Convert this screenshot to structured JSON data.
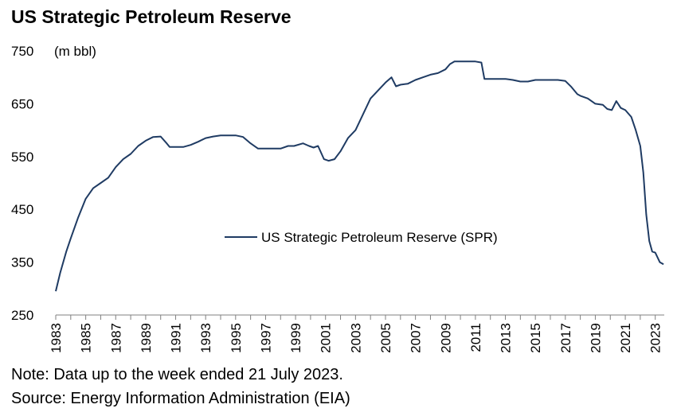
{
  "chart_data": {
    "type": "line",
    "title": "US Strategic Petroleum Reserve",
    "unit_label": "(m bbl)",
    "legend_label": "US Strategic Petroleum Reserve (SPR)",
    "legend_position": "center-right",
    "grid": false,
    "ylim": [
      250,
      750
    ],
    "yticks": [
      250,
      350,
      450,
      550,
      650,
      750
    ],
    "xlim": [
      1983,
      2023.6
    ],
    "xticks": [
      1983,
      1985,
      1987,
      1989,
      1991,
      1993,
      1995,
      1997,
      1999,
      2001,
      2003,
      2005,
      2007,
      2009,
      2011,
      2013,
      2015,
      2017,
      2019,
      2021,
      2023
    ],
    "line_color": "#1f3b63",
    "series": [
      {
        "name": "US Strategic Petroleum Reserve (SPR)",
        "x": [
          1983.0,
          1983.3,
          1983.7,
          1984.0,
          1984.5,
          1985.0,
          1985.5,
          1986.0,
          1986.5,
          1987.0,
          1987.5,
          1988.0,
          1988.5,
          1989.0,
          1989.5,
          1990.0,
          1990.4,
          1990.6,
          1991.0,
          1991.5,
          1992.0,
          1992.5,
          1993.0,
          1993.5,
          1994.0,
          1994.5,
          1995.0,
          1995.5,
          1996.0,
          1996.5,
          1997.0,
          1997.5,
          1998.0,
          1998.5,
          1998.9,
          1999.5,
          1999.9,
          2000.2,
          2000.5,
          2000.9,
          2001.2,
          2001.6,
          2002.0,
          2002.5,
          2003.0,
          2003.5,
          2004.0,
          2004.5,
          2005.0,
          2005.4,
          2005.7,
          2006.0,
          2006.5,
          2007.0,
          2007.5,
          2008.0,
          2008.5,
          2009.0,
          2009.3,
          2009.6,
          2010.0,
          2010.5,
          2011.0,
          2011.4,
          2011.6,
          2012.0,
          2012.5,
          2013.0,
          2013.5,
          2014.0,
          2014.5,
          2015.0,
          2015.5,
          2016.0,
          2016.5,
          2017.0,
          2017.4,
          2017.8,
          2018.0,
          2018.5,
          2019.0,
          2019.5,
          2019.8,
          2020.1,
          2020.4,
          2020.7,
          2021.0,
          2021.4,
          2021.7,
          2022.0,
          2022.2,
          2022.4,
          2022.6,
          2022.8,
          2023.0,
          2023.3,
          2023.55
        ],
        "y": [
          295,
          330,
          370,
          395,
          435,
          470,
          490,
          500,
          510,
          530,
          545,
          555,
          570,
          580,
          587,
          588,
          575,
          568,
          568,
          568,
          572,
          578,
          585,
          588,
          590,
          590,
          590,
          587,
          575,
          565,
          565,
          565,
          565,
          570,
          570,
          575,
          570,
          567,
          570,
          545,
          542,
          545,
          560,
          585,
          600,
          630,
          660,
          675,
          690,
          700,
          683,
          686,
          688,
          695,
          700,
          705,
          708,
          715,
          725,
          730,
          730,
          730,
          730,
          728,
          697,
          697,
          697,
          697,
          695,
          692,
          692,
          695,
          695,
          695,
          695,
          693,
          682,
          668,
          665,
          660,
          650,
          648,
          640,
          638,
          655,
          642,
          638,
          625,
          600,
          570,
          520,
          440,
          390,
          370,
          368,
          350,
          346
        ]
      }
    ]
  },
  "notes": {
    "note": "Note: Data up to the week ended 21 July 2023.",
    "source": "Source: Energy Information Administration (EIA)"
  }
}
